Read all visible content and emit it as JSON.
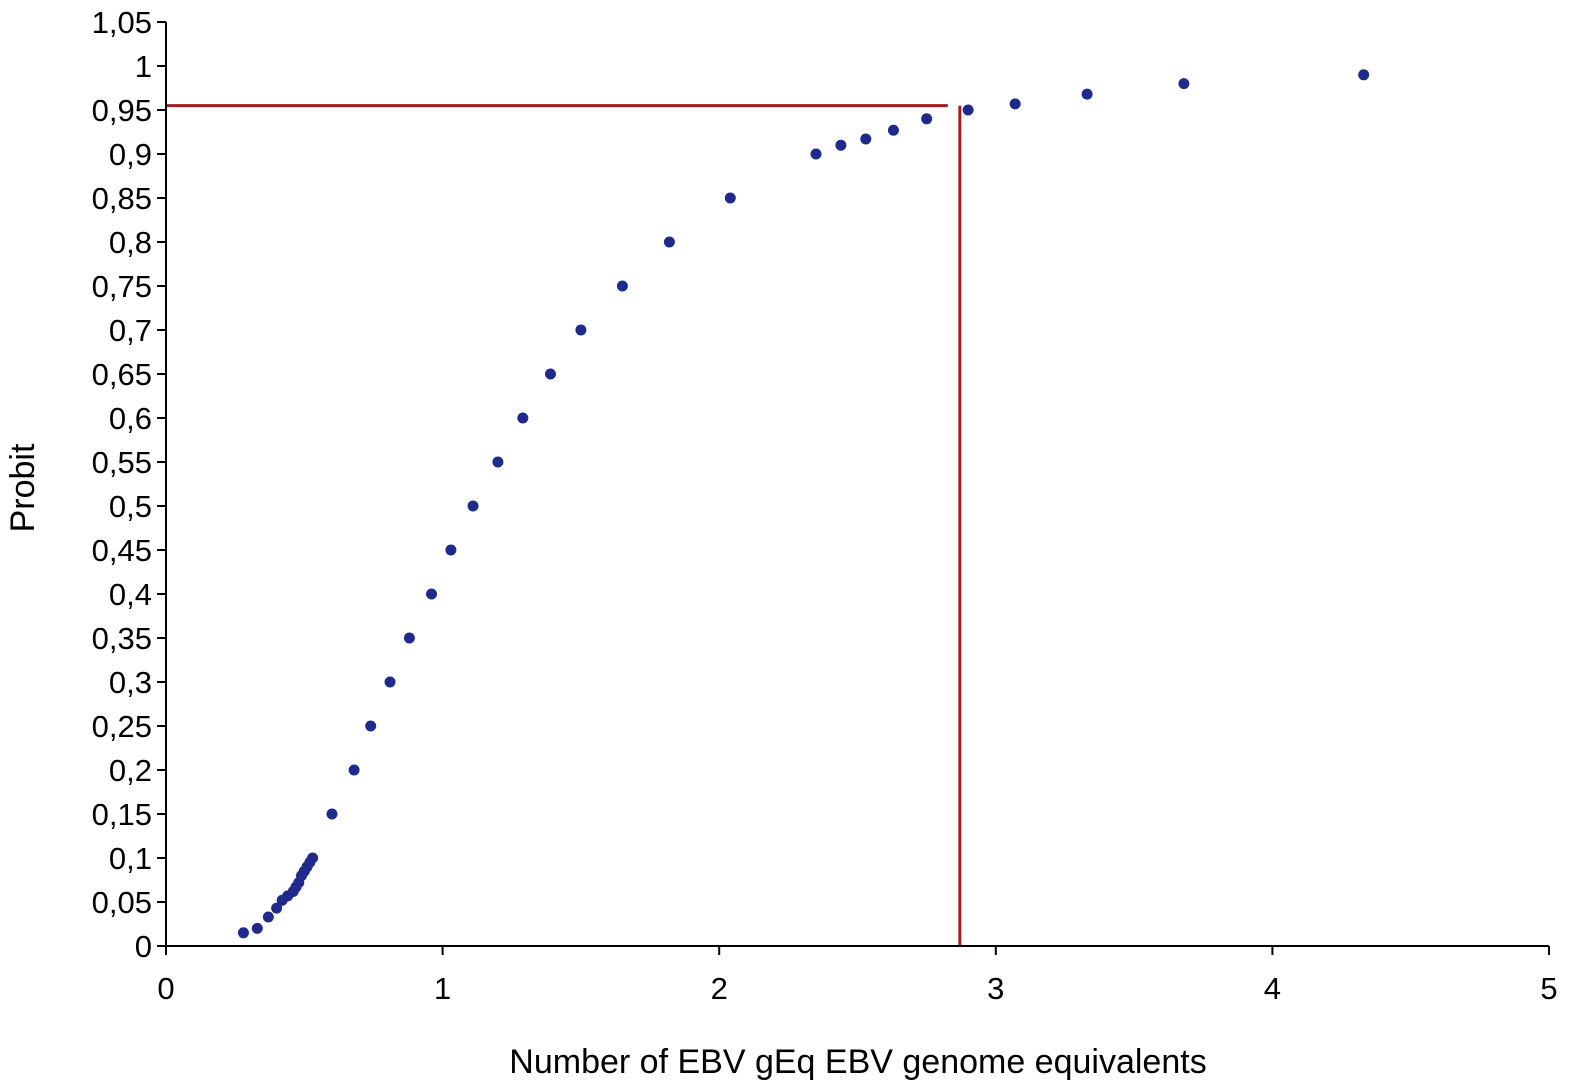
{
  "chart_data": {
    "type": "scatter",
    "title": "",
    "xlabel": "Number of EBV gEq EBV genome equivalents",
    "ylabel": "Probit",
    "xlim": [
      0,
      5
    ],
    "ylim": [
      0,
      1.05
    ],
    "x_ticks": [
      0,
      1,
      2,
      3,
      4,
      5
    ],
    "x_tick_labels": [
      "0",
      "1",
      "2",
      "3",
      "4",
      "5"
    ],
    "y_ticks": [
      0,
      0.05,
      0.1,
      0.15,
      0.2,
      0.25,
      0.3,
      0.35,
      0.4,
      0.45,
      0.5,
      0.55,
      0.6,
      0.65,
      0.7,
      0.75,
      0.8,
      0.85,
      0.9,
      0.95,
      1,
      1.05
    ],
    "y_tick_labels": [
      "0",
      "0,05",
      "0,1",
      "0,15",
      "0,2",
      "0,25",
      "0,3",
      "0,35",
      "0,4",
      "0,45",
      "0,5",
      "0,55",
      "0,6",
      "0,65",
      "0,7",
      "0,75",
      "0,8",
      "0,85",
      "0,9",
      "0,95",
      "1",
      "1,05"
    ],
    "grid": false,
    "legend": "none",
    "marker_color": "#1f2a8c",
    "reference_line_color": "#a01d24",
    "series": [
      {
        "x": [
          0.28,
          0.33,
          0.37,
          0.4,
          0.42,
          0.44,
          0.46,
          0.47,
          0.48,
          0.49,
          0.5,
          0.51,
          0.52,
          0.53,
          0.6,
          0.68,
          0.74,
          0.81,
          0.88,
          0.96,
          1.03,
          1.11,
          1.2,
          1.29,
          1.39,
          1.5,
          1.65,
          1.82,
          2.04,
          2.35,
          2.44,
          2.53,
          2.63,
          2.75,
          2.9,
          3.07,
          3.33,
          3.68,
          4.33
        ],
        "y": [
          0.015,
          0.02,
          0.033,
          0.043,
          0.052,
          0.057,
          0.062,
          0.067,
          0.072,
          0.08,
          0.085,
          0.09,
          0.095,
          0.1,
          0.15,
          0.2,
          0.25,
          0.3,
          0.35,
          0.4,
          0.45,
          0.5,
          0.55,
          0.6,
          0.65,
          0.7,
          0.75,
          0.8,
          0.85,
          0.9,
          0.91,
          0.917,
          0.927,
          0.94,
          0.95,
          0.957,
          0.968,
          0.98,
          0.99
        ]
      }
    ],
    "reference_lines": {
      "horizontal_y": 0.955,
      "vertical_x": 2.87
    }
  }
}
